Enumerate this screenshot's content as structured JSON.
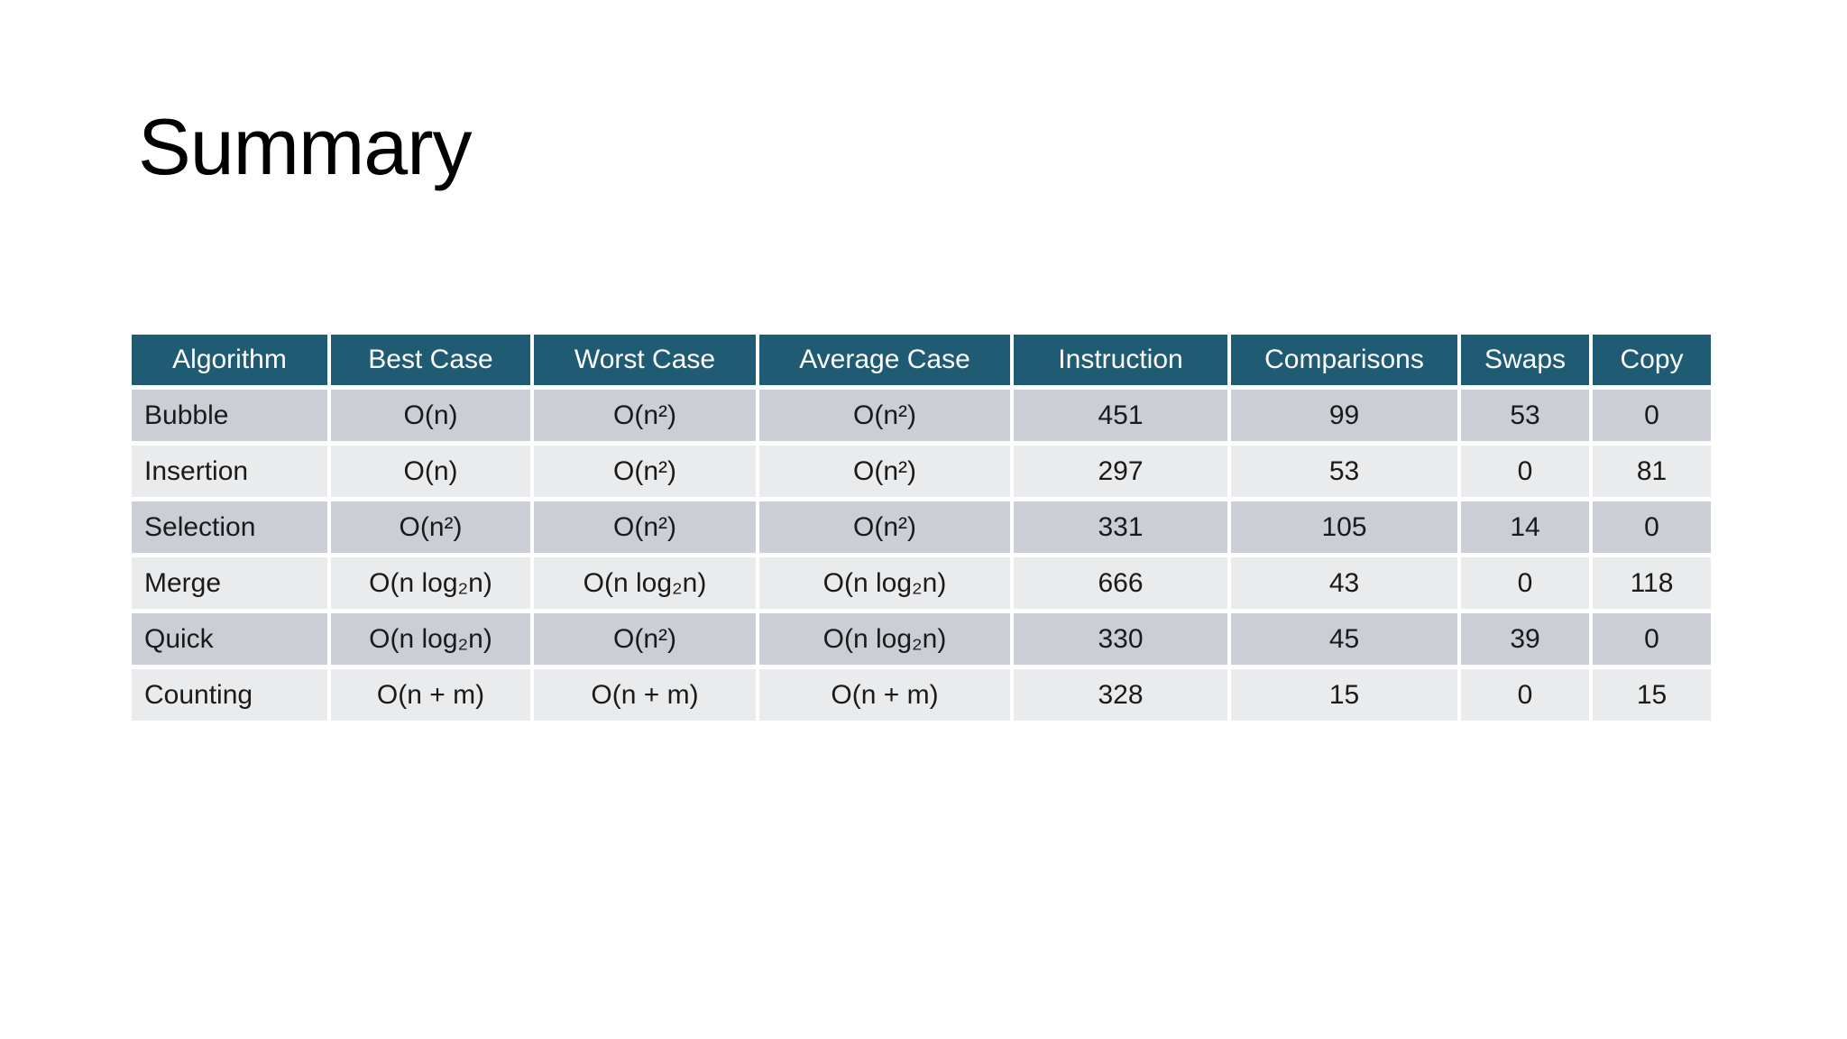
{
  "slide": {
    "title": "Summary"
  },
  "table": {
    "columns": [
      "Algorithm",
      "Best Case",
      "Worst Case",
      "Average Case",
      "Instruction",
      "Comparisons",
      "Swaps",
      "Copy"
    ],
    "rows": [
      [
        "Bubble",
        "O(n)",
        "O(n²)",
        "O(n²)",
        "451",
        "99",
        "53",
        "0"
      ],
      [
        "Insertion",
        "O(n)",
        "O(n²)",
        "O(n²)",
        "297",
        "53",
        "0",
        "81"
      ],
      [
        "Selection",
        "O(n²)",
        "O(n²)",
        "O(n²)",
        "331",
        "105",
        "14",
        "0"
      ],
      [
        "Merge",
        "O(n log₂n)",
        "O(n log₂n)",
        "O(n log₂n)",
        "666",
        "43",
        "0",
        "118"
      ],
      [
        "Quick",
        "O(n log₂n)",
        "O(n²)",
        "O(n log₂n)",
        "330",
        "45",
        "39",
        "0"
      ],
      [
        "Counting",
        "O(n + m)",
        "O(n + m)",
        "O(n + m)",
        "328",
        "15",
        "0",
        "15"
      ]
    ],
    "colors": {
      "header_bg": "#1F5B72",
      "header_text": "#FFFFFF",
      "row_odd_bg": "#CBCFD5",
      "row_even_bg": "#E9EBED",
      "body_text": "#1A1A1A",
      "grid": "#FFFFFF",
      "slide_bg": "#FFFFFF"
    }
  }
}
